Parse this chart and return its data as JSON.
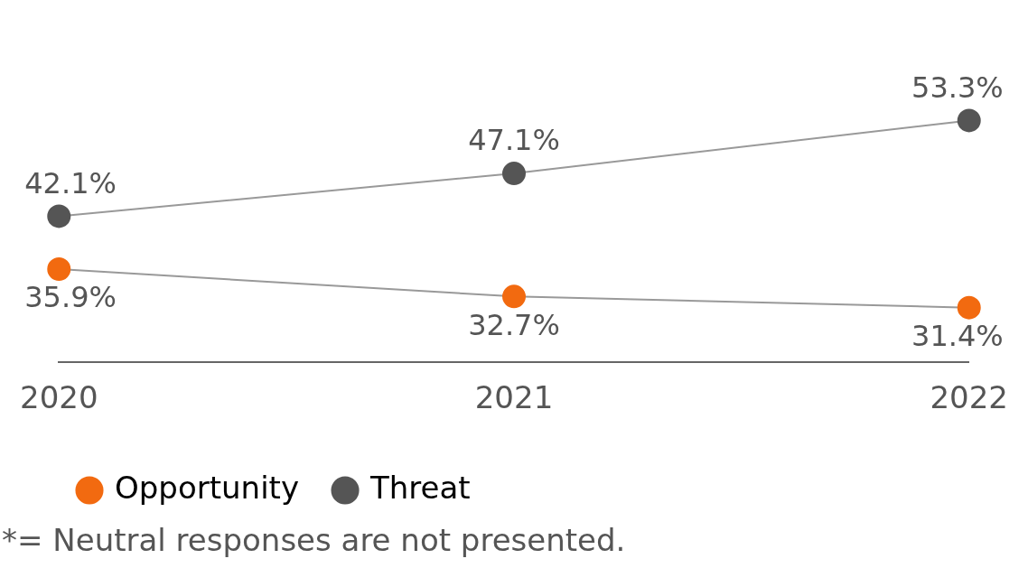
{
  "chart_data": {
    "type": "line",
    "categories": [
      "2020",
      "2021",
      "2022"
    ],
    "series": [
      {
        "name": "Opportunity",
        "color": "#f26a10",
        "values": [
          35.9,
          32.7,
          31.4
        ],
        "value_labels": [
          "35.9%",
          "32.7%",
          "31.4%"
        ]
      },
      {
        "name": "Threat",
        "color": "#555555",
        "values": [
          42.1,
          47.1,
          53.3
        ],
        "value_labels": [
          "42.1%",
          "47.1%",
          "53.3%"
        ]
      }
    ],
    "marker": "circle",
    "legend": "bottom left",
    "grid": false,
    "annotations": [
      "*= Neutral responses are not presented."
    ]
  }
}
